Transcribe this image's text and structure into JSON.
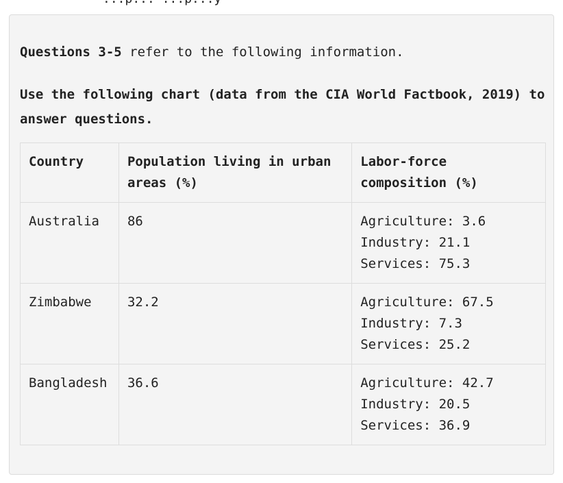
{
  "header_clip": "...p... ...p...y",
  "intro": {
    "questions_bold": "Questions 3-5",
    "questions_rest": " refer to the following information.",
    "instruction": "Use the following chart (data from the CIA World Factbook, 2019) to answer questions."
  },
  "table": {
    "headers": [
      "Country",
      "Population living in urban areas (%)",
      "Labor-force composition (%)"
    ],
    "rows": [
      {
        "country": "Australia",
        "urban": "86",
        "labor": [
          "Agriculture: 3.6",
          "Industry: 21.1",
          "Services: 75.3"
        ]
      },
      {
        "country": "Zimbabwe",
        "urban": "32.2",
        "labor": [
          "Agriculture: 67.5",
          "Industry: 7.3",
          "Services: 25.2"
        ]
      },
      {
        "country": "Bangladesh",
        "urban": "36.6",
        "labor": [
          "Agriculture: 42.7",
          "Industry: 20.5",
          "Services: 36.9"
        ]
      }
    ]
  }
}
